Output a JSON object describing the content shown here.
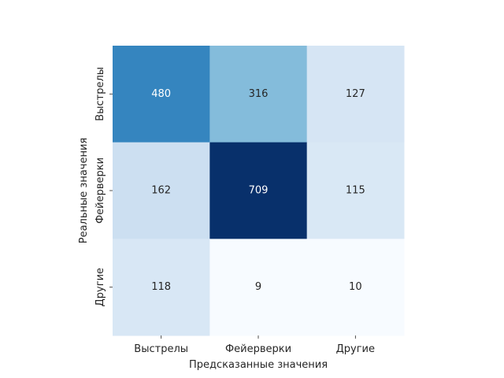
{
  "chart_data": {
    "type": "heatmap",
    "title": "",
    "xlabel": "Предсказанные значения",
    "ylabel": "Реальные значения",
    "x_categories": [
      "Выстрелы",
      "Фейерверки",
      "Другие"
    ],
    "y_categories": [
      "Выстрелы",
      "Фейерверки",
      "Другие"
    ],
    "values": [
      [
        480,
        316,
        127
      ],
      [
        162,
        709,
        115
      ],
      [
        118,
        9,
        10
      ]
    ],
    "colormap": "Blues",
    "colorbar": false,
    "annotations": true
  }
}
